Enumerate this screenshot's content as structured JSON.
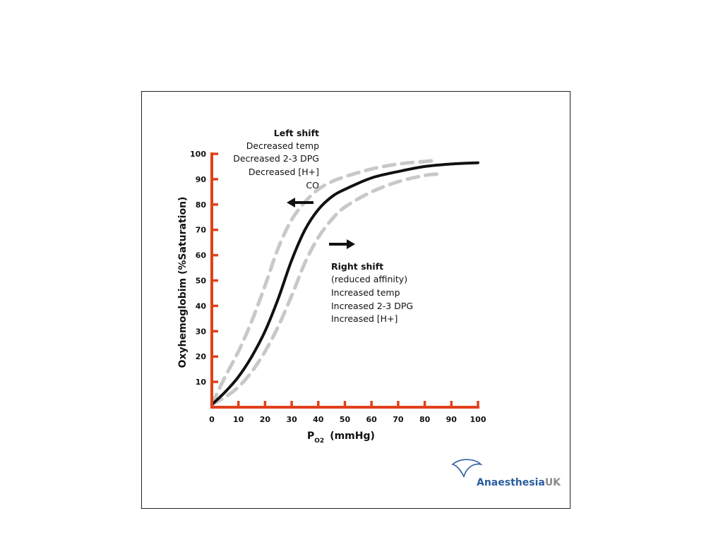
{
  "chart_data": {
    "type": "line",
    "title": "",
    "xlabel": "P",
    "xlabel_sub": "O2",
    "xlabel_unit": "(mmHg)",
    "ylabel": "Oxyhemoglobim  (%Saturation)",
    "xlim": [
      0,
      100
    ],
    "ylim": [
      0,
      100
    ],
    "x_ticks": [
      "0",
      "10",
      "20",
      "30",
      "40",
      "50",
      "60",
      "70",
      "80",
      "90",
      "100"
    ],
    "y_ticks": [
      "10",
      "20",
      "30",
      "40",
      "50",
      "60",
      "70",
      "80",
      "90",
      "100"
    ],
    "series": [
      {
        "style": "solid",
        "color": "#111111",
        "x": [
          0,
          5,
          10,
          15,
          20,
          25,
          30,
          35,
          40,
          45,
          50,
          60,
          70,
          80,
          90,
          100
        ],
        "y": [
          1,
          6,
          12,
          20,
          30,
          43,
          58,
          70,
          78,
          83,
          86,
          90.5,
          93,
          95,
          96,
          96.5
        ]
      },
      {
        "style": "dashed",
        "color": "#c8c8c8",
        "x": [
          0,
          5,
          10,
          15,
          20,
          25,
          30,
          35,
          40,
          45,
          50,
          60,
          70,
          80,
          85
        ],
        "y": [
          1,
          12,
          22,
          34,
          48,
          63,
          74,
          81,
          86,
          89,
          91,
          94,
          96,
          97,
          97.5
        ]
      },
      {
        "style": "dashed",
        "color": "#c8c8c8",
        "x": [
          0,
          5,
          10,
          15,
          20,
          25,
          30,
          35,
          40,
          45,
          50,
          60,
          70,
          80,
          85
        ],
        "y": [
          1,
          4,
          8,
          14,
          22,
          32,
          44,
          57,
          67,
          74,
          79,
          85,
          89,
          91.5,
          92
        ]
      }
    ],
    "annotations": {
      "left_shift": [
        "Left shift",
        "Decreased temp",
        "Decreased 2-3 DPG",
        "Decreased [H+]",
        "CO"
      ],
      "right_shift": [
        "Right shift",
        "(reduced affinity)",
        "Increased temp",
        "Increased 2-3 DPG",
        "Increased [H+]"
      ]
    },
    "axis_color": "#e0401a",
    "grid": false
  },
  "logo": {
    "part1": "Anaesthesia",
    "part2": "UK",
    "color1": "#2a5d9f",
    "color2": "#8a8a8a"
  }
}
